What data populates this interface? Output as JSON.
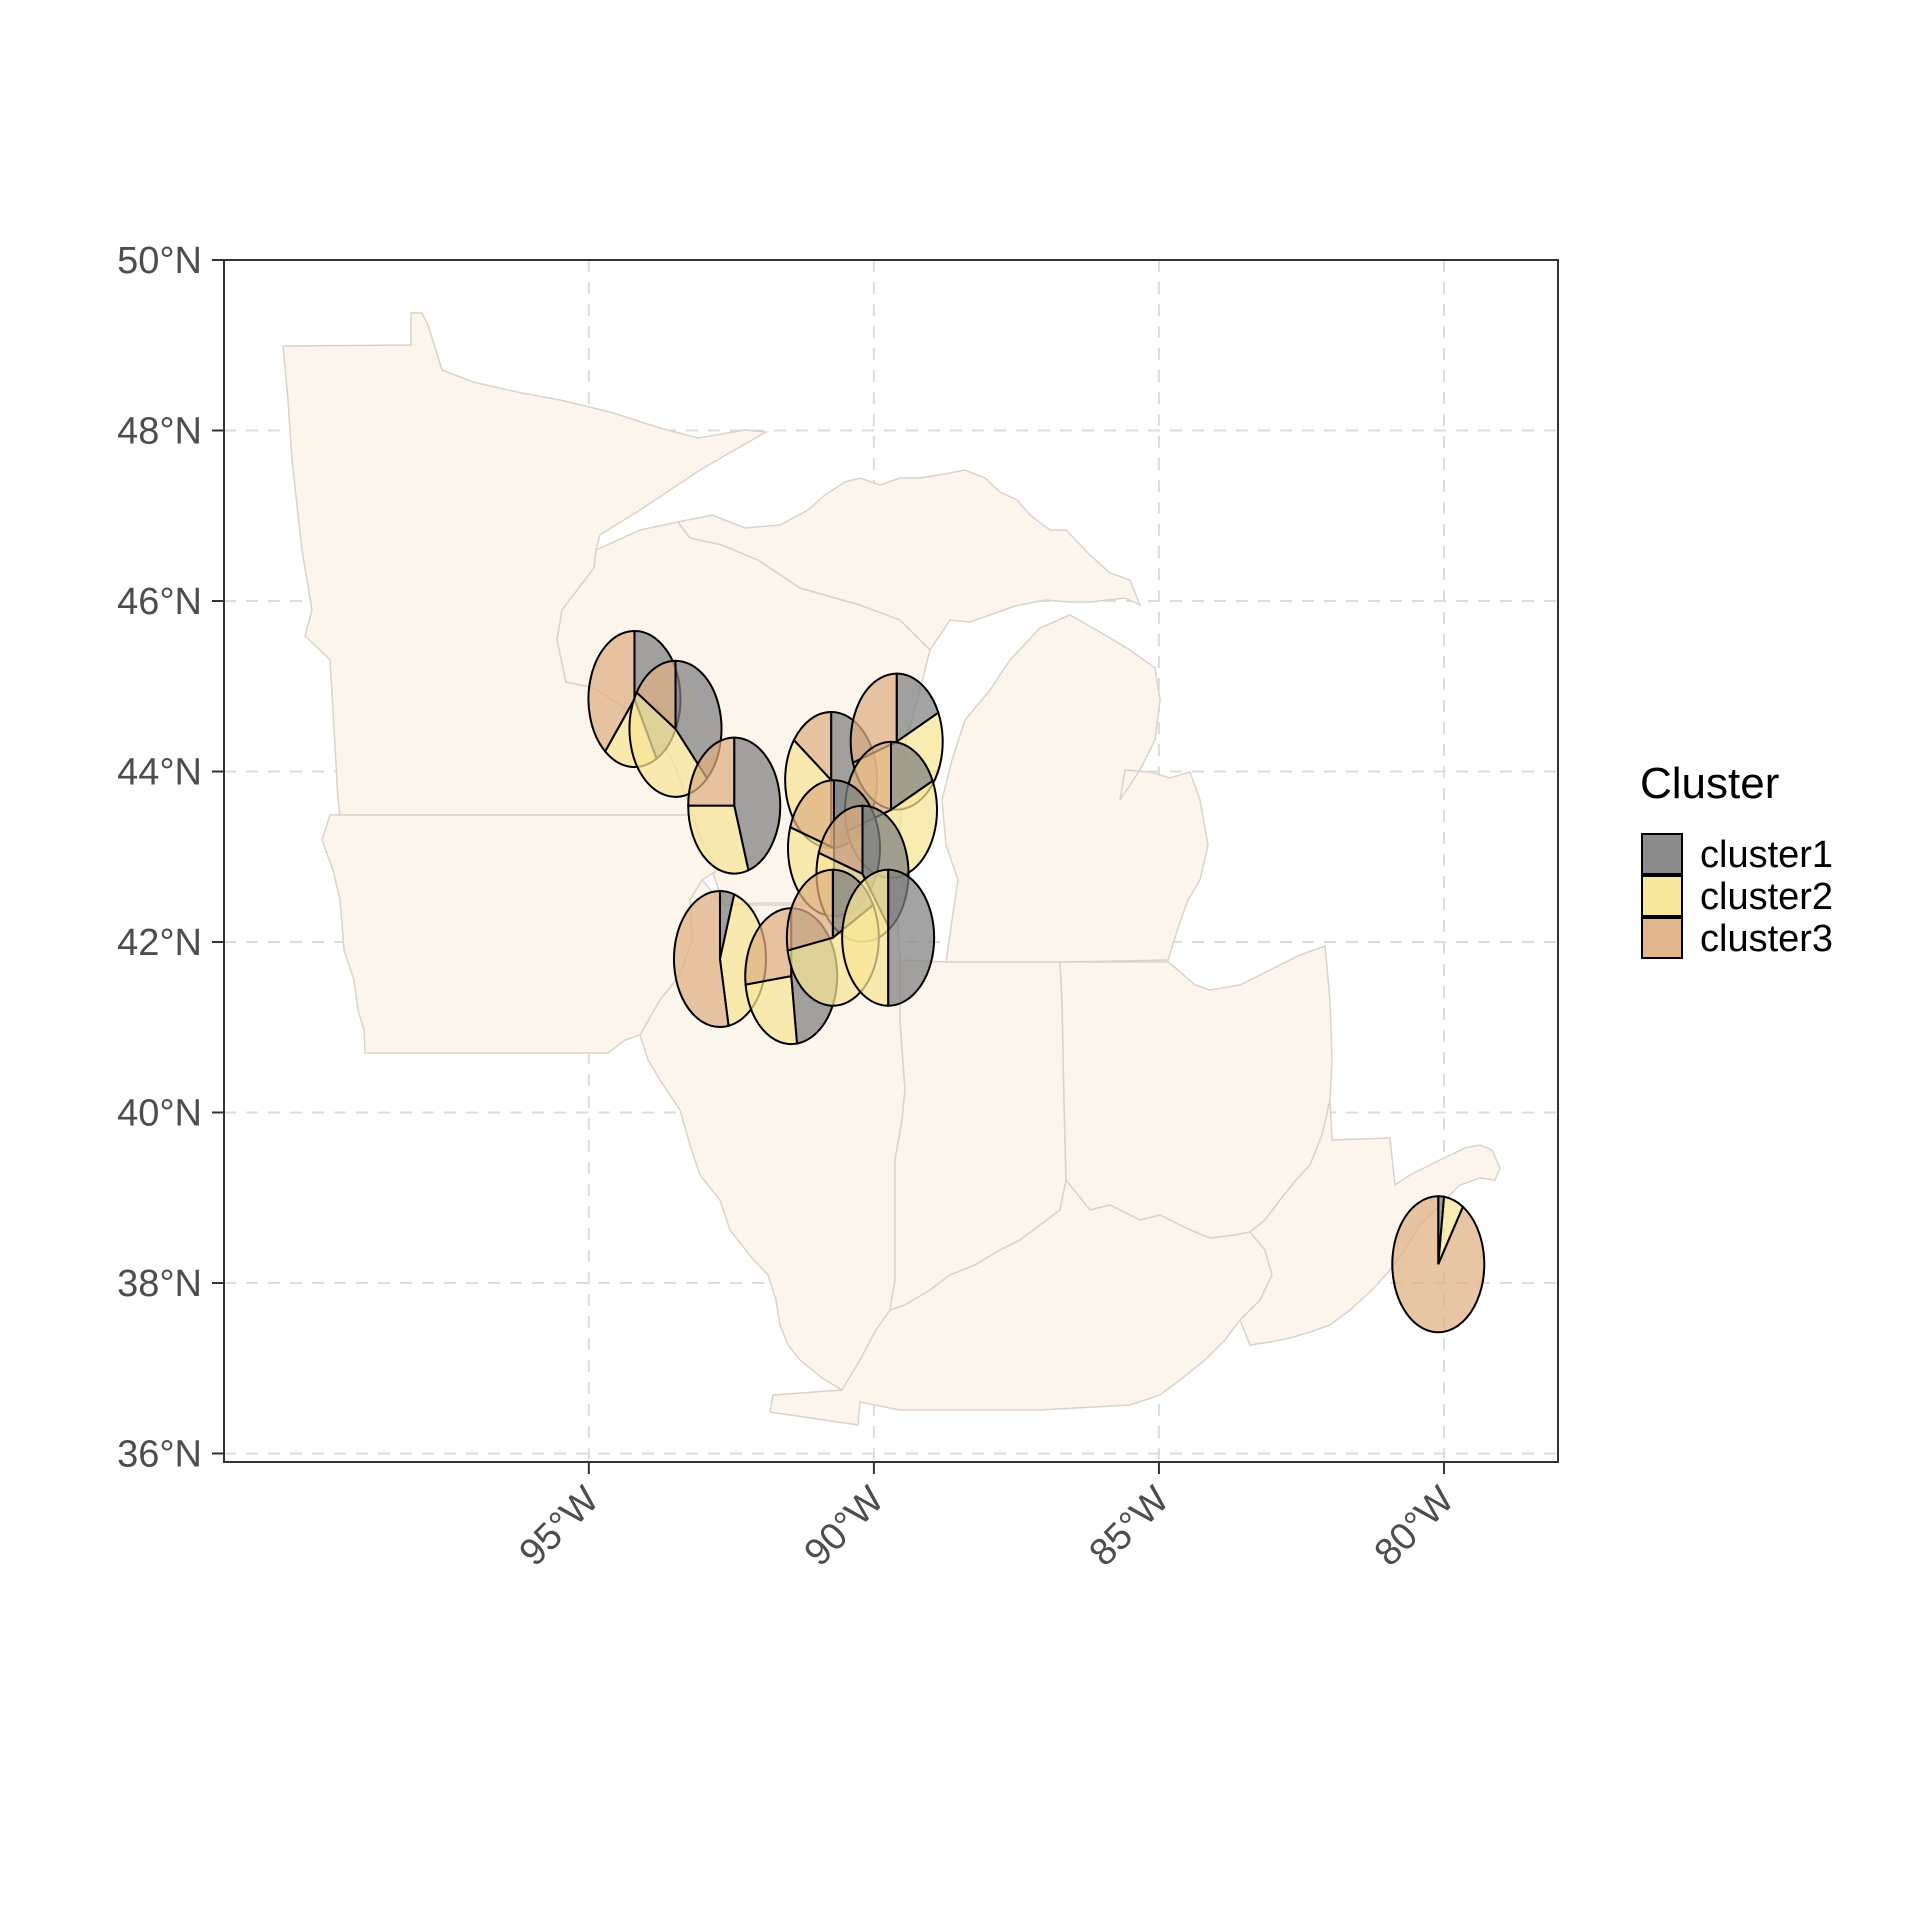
{
  "chart_data": {
    "type": "map-pie",
    "title": "",
    "xlabel": "",
    "ylabel": "",
    "xlim": [
      -101.4,
      -78.0
    ],
    "ylim": [
      35.9,
      50.0
    ],
    "x_ticks": [
      {
        "value": -95,
        "label": "95°W"
      },
      {
        "value": -90,
        "label": "90°W"
      },
      {
        "value": -85,
        "label": "85°W"
      },
      {
        "value": -80,
        "label": "80°W"
      }
    ],
    "y_ticks": [
      {
        "value": 36,
        "label": "36°N"
      },
      {
        "value": 38,
        "label": "38°N"
      },
      {
        "value": 40,
        "label": "40°N"
      },
      {
        "value": 42,
        "label": "42°N"
      },
      {
        "value": 44,
        "label": "44°N"
      },
      {
        "value": 46,
        "label": "46°N"
      },
      {
        "value": 48,
        "label": "48°N"
      },
      {
        "value": 50,
        "label": "50°N"
      }
    ],
    "grid": true,
    "background": {
      "type": "state-outlines",
      "fill": "#fbf5eb",
      "stroke": "#cccccc"
    },
    "legend": {
      "title": "Cluster",
      "placement": "right",
      "items": [
        {
          "name": "cluster1",
          "color": "#808080"
        },
        {
          "name": "cluster2",
          "color": "#f6e596"
        },
        {
          "name": "cluster3",
          "color": "#dfae82"
        }
      ]
    },
    "series_names": [
      "cluster1",
      "cluster2",
      "cluster3"
    ],
    "sites": [
      {
        "lon": -94.2,
        "lat": 44.85,
        "values": [
          0.42,
          0.19,
          0.39
        ]
      },
      {
        "lon": -93.48,
        "lat": 44.5,
        "values": [
          0.38,
          0.46,
          0.16
        ]
      },
      {
        "lon": -92.45,
        "lat": 43.6,
        "values": [
          0.45,
          0.3,
          0.25
        ]
      },
      {
        "lon": -90.75,
        "lat": 43.9,
        "values": [
          0.5,
          0.35,
          0.15
        ]
      },
      {
        "lon": -89.6,
        "lat": 44.35,
        "values": [
          0.18,
          0.52,
          0.3
        ]
      },
      {
        "lon": -89.7,
        "lat": 43.55,
        "values": [
          0.18,
          0.52,
          0.3
        ]
      },
      {
        "lon": -90.7,
        "lat": 43.1,
        "values": [
          0.5,
          0.3,
          0.2
        ]
      },
      {
        "lon": -90.2,
        "lat": 42.8,
        "values": [
          0.4,
          0.4,
          0.2
        ]
      },
      {
        "lon": -92.7,
        "lat": 41.8,
        "values": [
          0.05,
          0.42,
          0.53
        ]
      },
      {
        "lon": -91.45,
        "lat": 41.6,
        "values": [
          0.48,
          0.25,
          0.27
        ]
      },
      {
        "lon": -90.72,
        "lat": 42.05,
        "values": [
          0.17,
          0.55,
          0.28
        ]
      },
      {
        "lon": -89.75,
        "lat": 42.05,
        "values": [
          0.5,
          0.5,
          0.0
        ]
      },
      {
        "lon": -80.1,
        "lat": 38.22,
        "values": [
          0.02,
          0.07,
          0.91
        ]
      }
    ]
  }
}
